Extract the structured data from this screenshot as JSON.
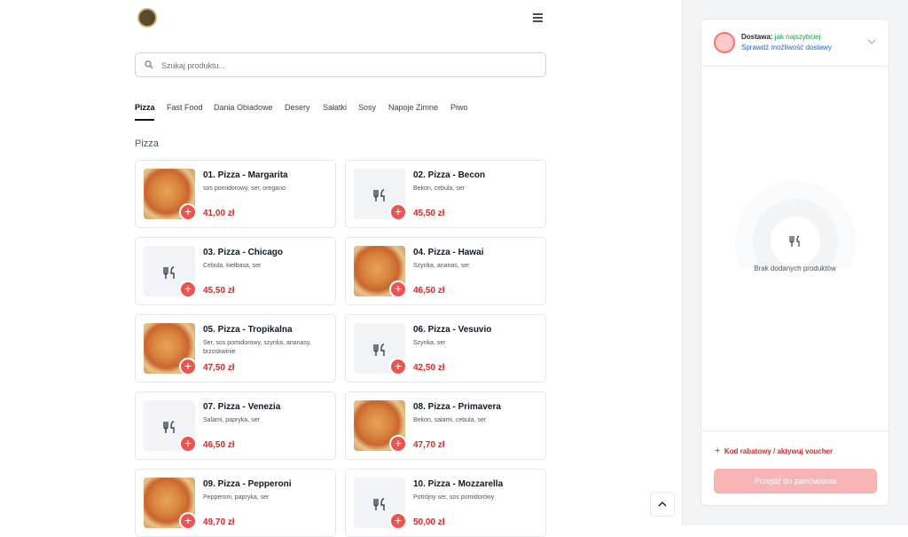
{
  "header": {
    "search_placeholder": "Szukaj produktu..."
  },
  "tabs": [
    "Pizza",
    "Fast Food",
    "Dania Obiadowe",
    "Desery",
    "Sałatki",
    "Sosy",
    "Napoje Zimne",
    "Piwo"
  ],
  "section_title": "Pizza",
  "products": [
    {
      "name": "01. Pizza - Margarita",
      "description": "sos pomidorowy, ser, oregano",
      "price": "41,00 zł",
      "image": true
    },
    {
      "name": "02. Pizza - Becon",
      "description": "Bekon, cebula, ser",
      "price": "45,50 zł",
      "image": false
    },
    {
      "name": "03. Pizza - Chicago",
      "description": "Cebula, kiełbasa, ser",
      "price": "45,50 zł",
      "image": false
    },
    {
      "name": "04. Pizza - Hawai",
      "description": "Szynka, ananas, ser",
      "price": "46,50 zł",
      "image": true
    },
    {
      "name": "05. Pizza - Tropikalna",
      "description": "Ser, sos pomidorowy, szynka, ananasy, brzoskwinie",
      "price": "47,50 zł",
      "image": true
    },
    {
      "name": "06. Pizza - Vesuvio",
      "description": "Szynka, ser",
      "price": "42,50 zł",
      "image": false
    },
    {
      "name": "07. Pizza - Venezia",
      "description": "Salami, papryka, ser",
      "price": "46,50 zł",
      "image": false
    },
    {
      "name": "08. Pizza - Primavera",
      "description": "Bekon, salami, cebula, ser",
      "price": "47,70 zł",
      "image": true
    },
    {
      "name": "09. Pizza - Pepperoni",
      "description": "Pepperoni, papryka, ser",
      "price": "49,70 zł",
      "image": true
    },
    {
      "name": "10. Pizza - Mozzarella",
      "description": "Potrójny ser, sos pomidorowy",
      "price": "50,00 zł",
      "image": false
    }
  ],
  "cart": {
    "delivery_label": "Dostawa:",
    "delivery_value": "jak najszybciej",
    "delivery_link": "Sprawdź możliwość dostawy",
    "empty_text": "Brak dodanych produktów",
    "voucher": "Kod rabatowy / aktywuj voucher",
    "checkout": "Przejdź do zamówienia"
  }
}
